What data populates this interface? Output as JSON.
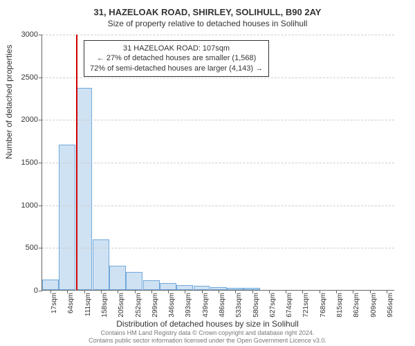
{
  "chart": {
    "type": "histogram",
    "title_main": "31, HAZELOAK ROAD, SHIRLEY, SOLIHULL, B90 2AY",
    "title_sub": "Size of property relative to detached houses in Solihull",
    "y_axis_label": "Number of detached properties",
    "x_axis_label": "Distribution of detached houses by size in Solihull",
    "ylim": [
      0,
      3000
    ],
    "ytick_step": 500,
    "y_ticks": [
      0,
      500,
      1000,
      1500,
      2000,
      2500,
      3000
    ],
    "x_ticks": [
      "17sqm",
      "64sqm",
      "111sqm",
      "158sqm",
      "205sqm",
      "252sqm",
      "299sqm",
      "346sqm",
      "393sqm",
      "439sqm",
      "486sqm",
      "533sqm",
      "580sqm",
      "627sqm",
      "674sqm",
      "721sqm",
      "768sqm",
      "815sqm",
      "862sqm",
      "909sqm",
      "956sqm"
    ],
    "bar_values": [
      120,
      1700,
      2370,
      590,
      280,
      210,
      110,
      80,
      55,
      45,
      30,
      25,
      25,
      0,
      0,
      0,
      0,
      0,
      0,
      0,
      0
    ],
    "bar_color": "#cfe2f3",
    "bar_border_color": "#6fa8dc",
    "marker_color": "#cc0000",
    "marker_bin_index": 2,
    "marker_position_in_bin": 0.0,
    "background_color": "#ffffff",
    "grid_color": "#cccccc",
    "axis_color": "#666666",
    "annotation": {
      "line1": "31 HAZELOAK ROAD: 107sqm",
      "line2": "← 27% of detached houses are smaller (1,568)",
      "line3": "72% of semi-detached houses are larger (4,143) →",
      "bg_color": "#ffffff",
      "border_color": "#333333"
    },
    "footer_line1": "Contains HM Land Registry data © Crown copyright and database right 2024.",
    "footer_line2": "Contains public sector information licensed under the Open Government Licence v3.0."
  }
}
